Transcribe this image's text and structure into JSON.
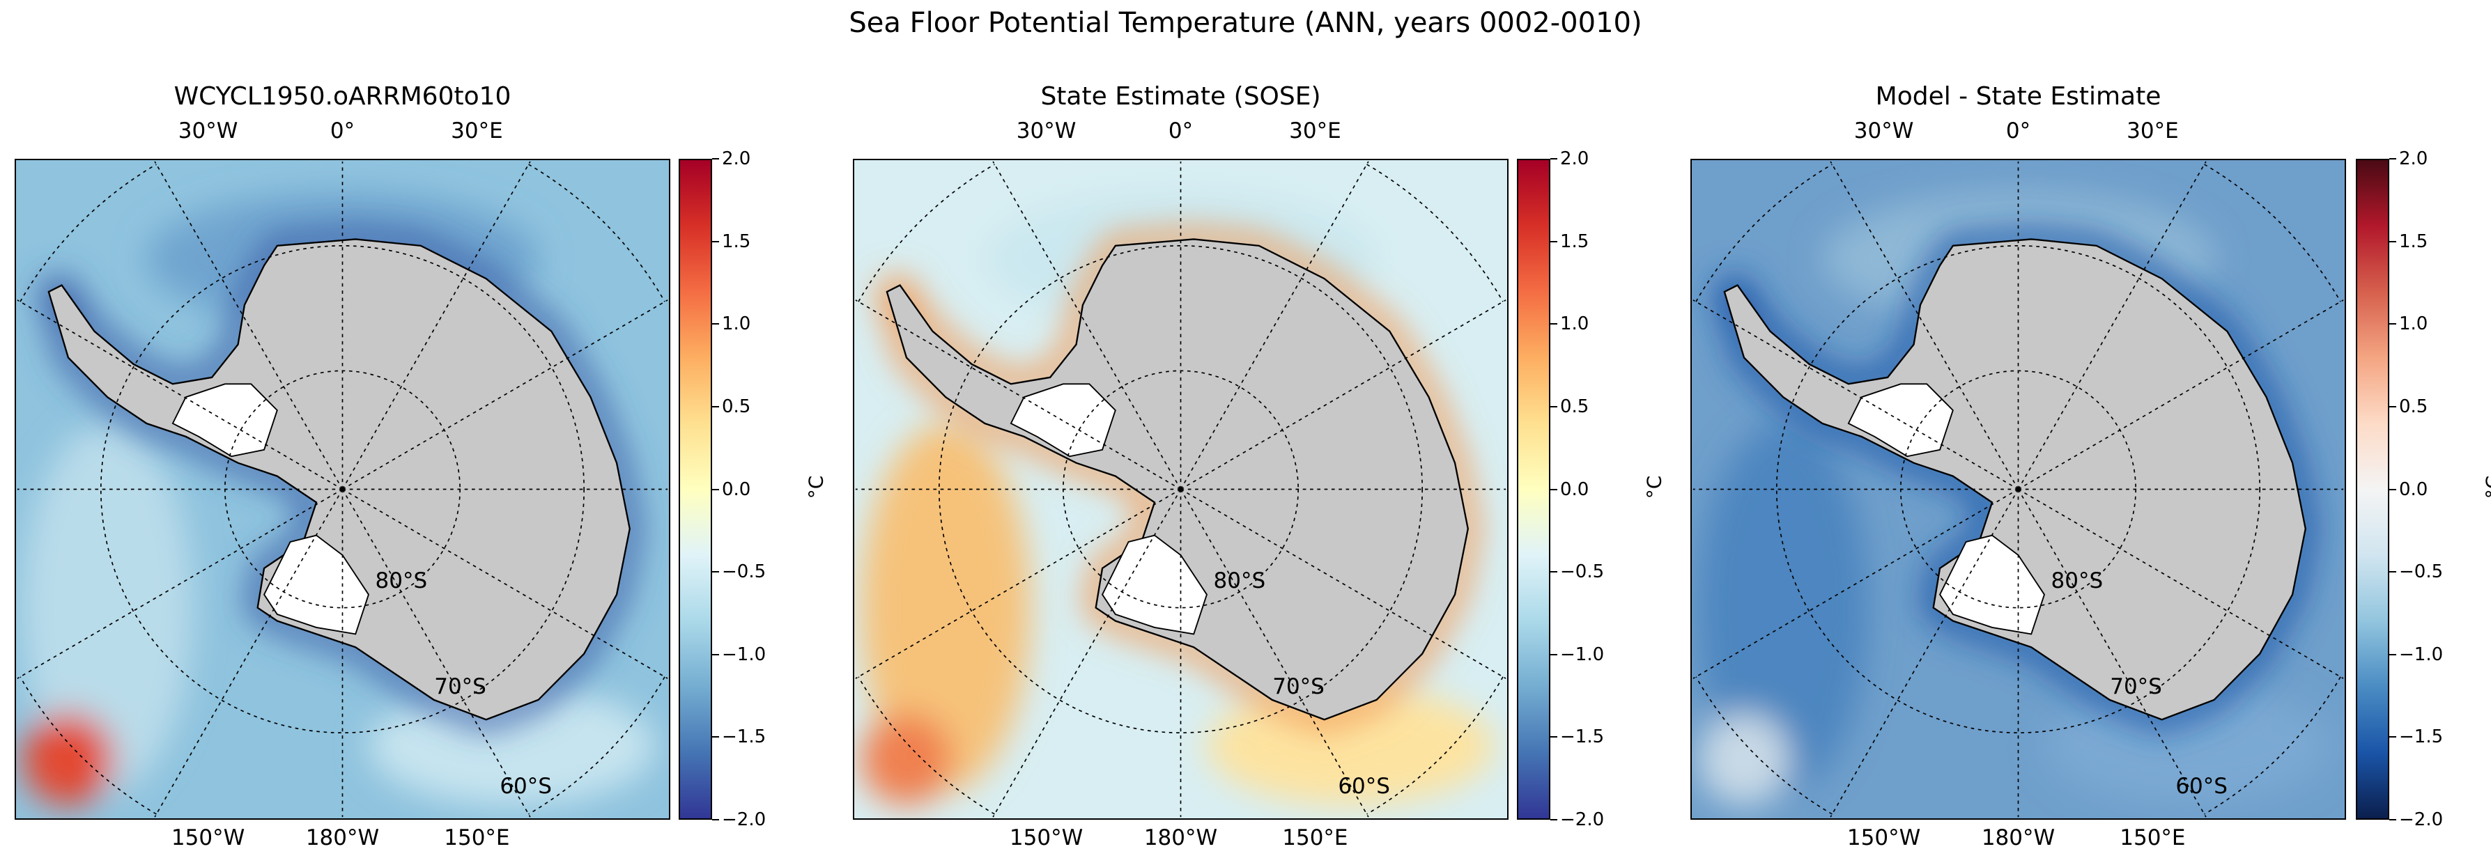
{
  "title": "Sea Floor Potential Temperature (ANN, years 0002-0010)",
  "chart_data": [
    {
      "type": "heatmap",
      "title": "WCYCL1950.oARRM60to10",
      "projection": "south-polar-stereographic",
      "top_lon_labels": [
        "30°W",
        "0°",
        "30°E"
      ],
      "bottom_lon_labels": [
        "150°W",
        "180°W",
        "150°E"
      ],
      "lat_labels": [
        "80°S",
        "70°S",
        "60°S"
      ],
      "colorbar": {
        "label": "°C",
        "range": [
          -2.0,
          2.0
        ],
        "ticks": [
          "2.0",
          "1.5",
          "1.0",
          "0.5",
          "0.0",
          "−0.5",
          "−1.0",
          "−1.5",
          "−2.0"
        ],
        "colormap": "RdYlBu_r"
      },
      "ocean_color": "#8fc3de",
      "shelf_color": "#3a5fa8"
    },
    {
      "type": "heatmap",
      "title": "State Estimate (SOSE)",
      "projection": "south-polar-stereographic",
      "top_lon_labels": [
        "30°W",
        "0°",
        "30°E"
      ],
      "bottom_lon_labels": [
        "150°W",
        "180°W",
        "150°E"
      ],
      "lat_labels": [
        "80°S",
        "70°S",
        "60°S"
      ],
      "colorbar": {
        "label": "°C",
        "range": [
          -2.0,
          2.0
        ],
        "ticks": [
          "2.0",
          "1.5",
          "1.0",
          "0.5",
          "0.0",
          "−0.5",
          "−1.0",
          "−1.5",
          "−2.0"
        ],
        "colormap": "RdYlBu_r"
      },
      "ocean_color": "#d8eef2",
      "shelf_color": "#f39a55"
    },
    {
      "type": "heatmap",
      "title": "Model - State Estimate",
      "projection": "south-polar-stereographic",
      "top_lon_labels": [
        "30°W",
        "0°",
        "30°E"
      ],
      "bottom_lon_labels": [
        "150°W",
        "180°W",
        "150°E"
      ],
      "lat_labels": [
        "80°S",
        "70°S",
        "60°S"
      ],
      "colorbar": {
        "label": "°C",
        "range": [
          -2.0,
          2.0
        ],
        "ticks": [
          "2.0",
          "1.5",
          "1.0",
          "0.5",
          "0.0",
          "−0.5",
          "−1.0",
          "−1.5",
          "−2.0"
        ],
        "colormap": "RdBu_r"
      },
      "ocean_color": "#6f9fcb",
      "shelf_color": "#1f55a8"
    }
  ]
}
